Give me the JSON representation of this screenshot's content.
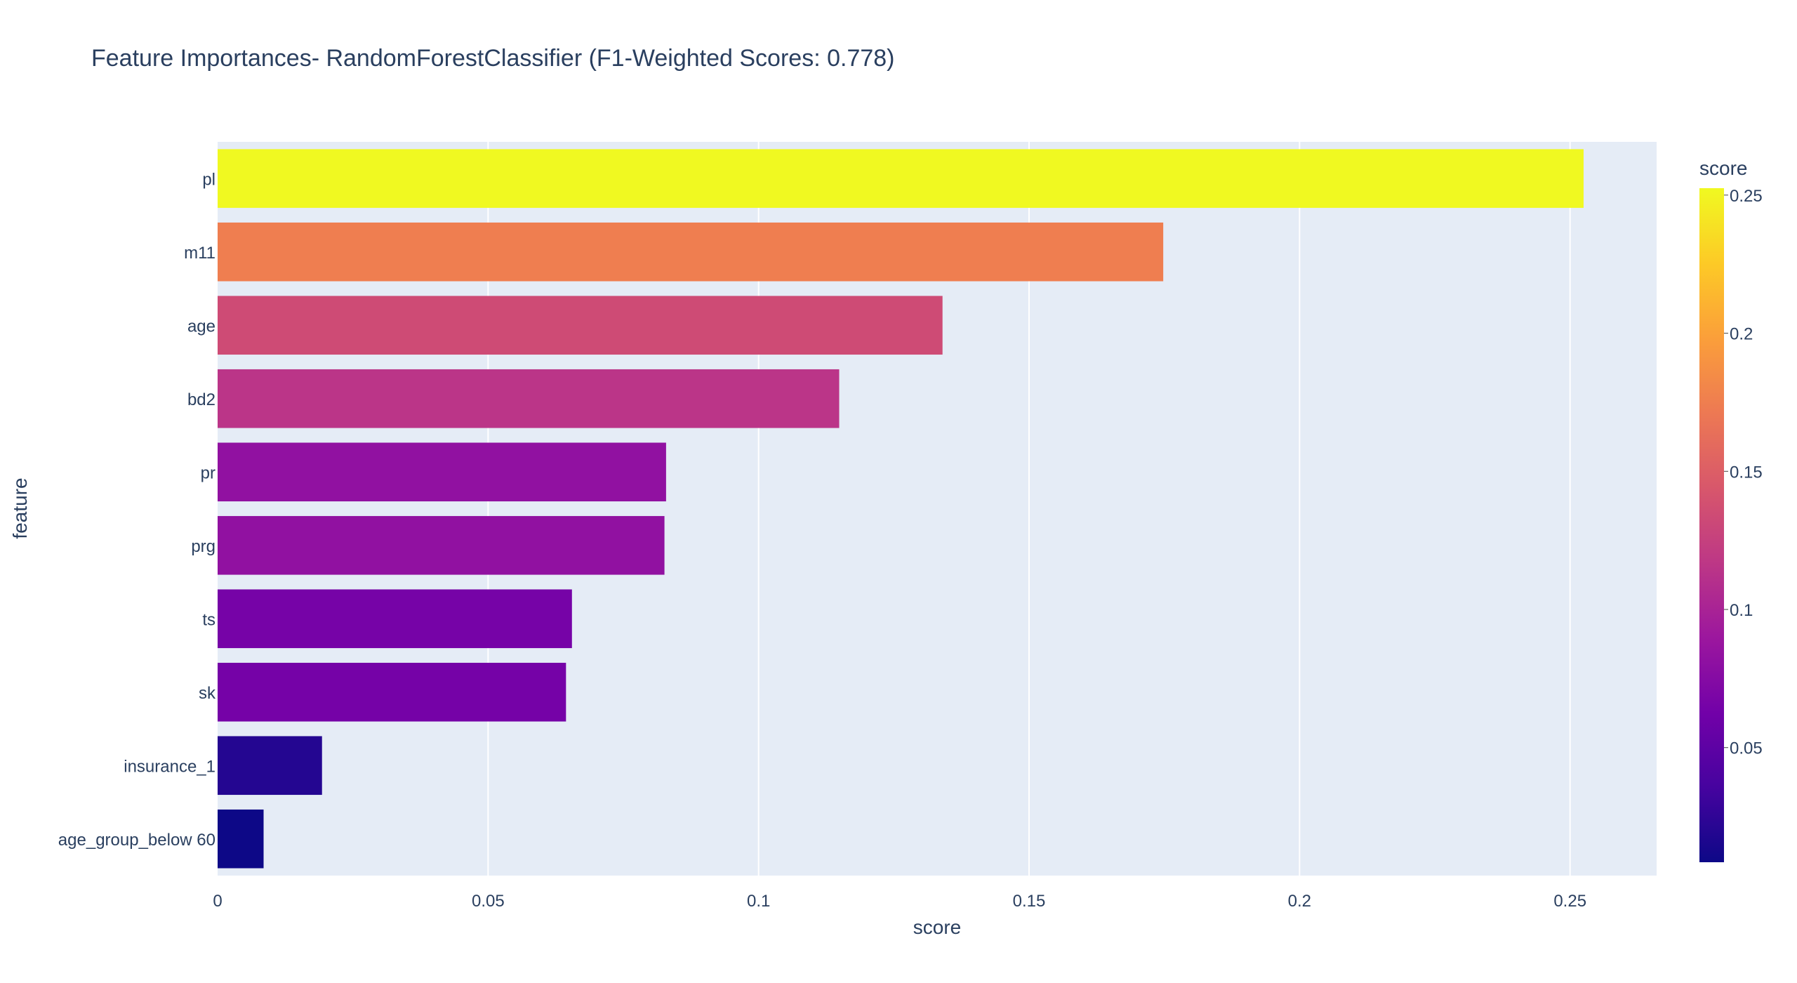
{
  "chart_data": {
    "type": "bar",
    "orientation": "horizontal",
    "title": "Feature Importances- RandomForestClassifier (F1-Weighted Scores: 0.778)",
    "xlabel": "score",
    "ylabel": "feature",
    "categories": [
      "pl",
      "m11",
      "age",
      "bd2",
      "pr",
      "prg",
      "ts",
      "sk",
      "insurance_1",
      "age_group_below 60"
    ],
    "values": [
      0.2525,
      0.1748,
      0.134,
      0.1149,
      0.0829,
      0.0826,
      0.0655,
      0.0644,
      0.0193,
      0.0085
    ],
    "xlim": [
      0,
      0.266
    ],
    "xticks": [
      0,
      0.05,
      0.1,
      0.15,
      0.2,
      0.25
    ],
    "xtick_labels": [
      "0",
      "0.05",
      "0.1",
      "0.15",
      "0.2",
      "0.25"
    ],
    "grid": true,
    "plot_background": "#e5ecf6",
    "colorscale": "plasma",
    "colorbar": {
      "title": "score",
      "range": [
        0.0085,
        0.2525
      ],
      "ticks": [
        0.05,
        0.1,
        0.15,
        0.2,
        0.25
      ],
      "tick_labels": [
        "0.05",
        "0.1",
        "0.15",
        "0.2",
        "0.25"
      ]
    }
  }
}
